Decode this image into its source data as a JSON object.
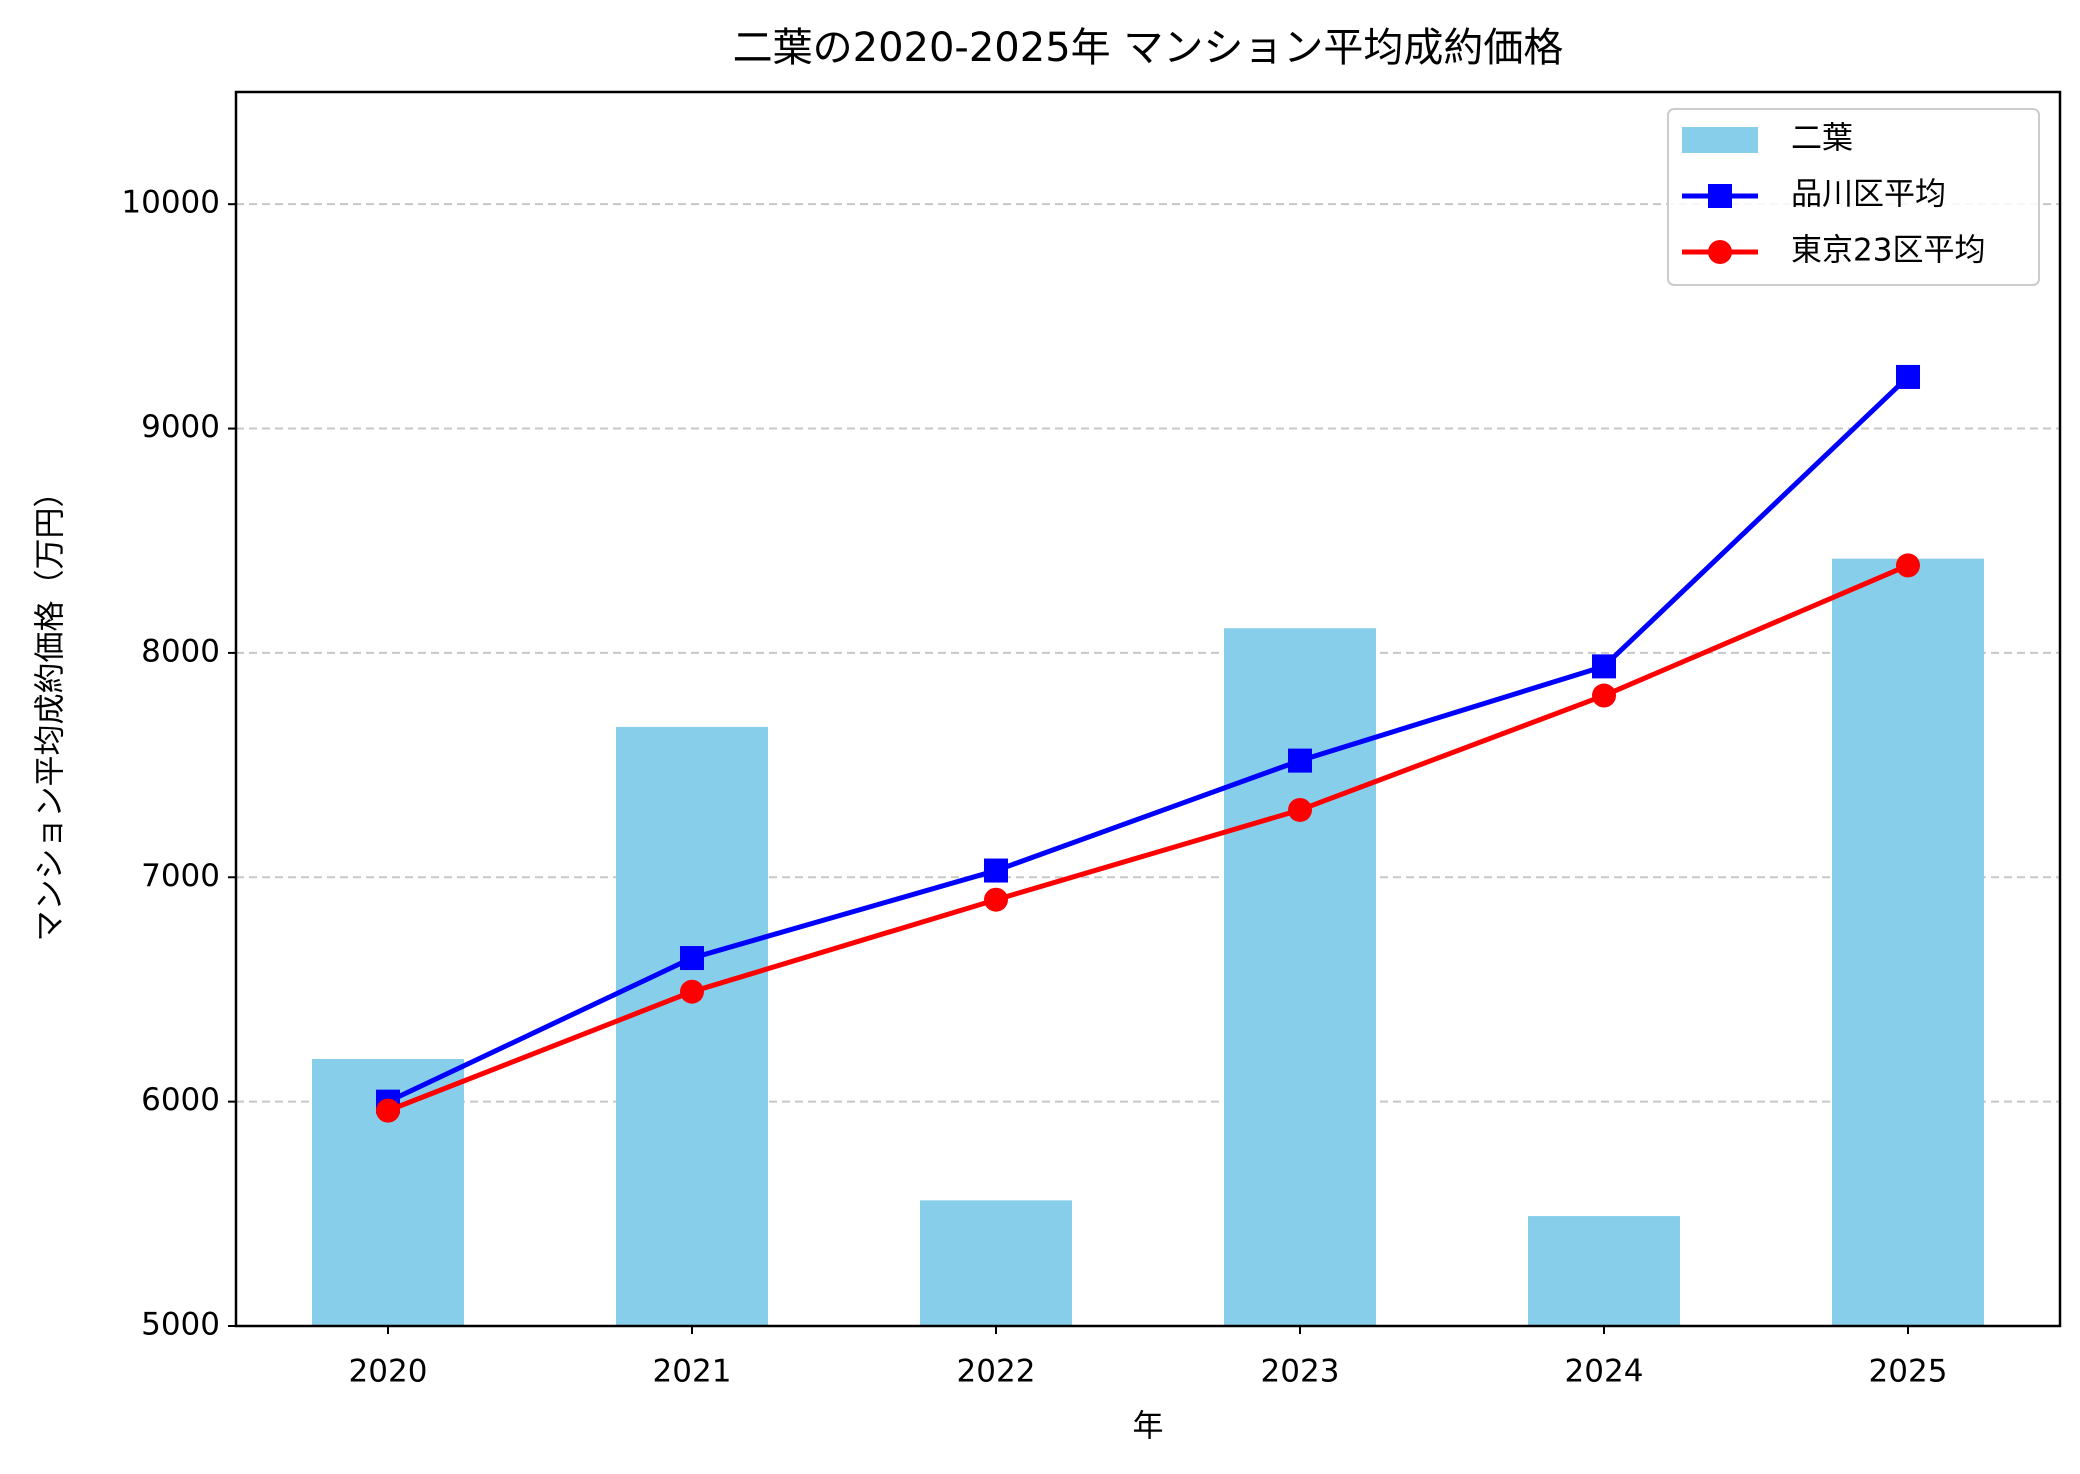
{
  "chart_data": {
    "type": "bar_line",
    "title": "二葉の2020-2025年 マンション平均成約価格",
    "x_label": "年",
    "y_label": "マンション平均成約価格（万円）",
    "categories": [
      "2020",
      "2021",
      "2022",
      "2023",
      "2024",
      "2025"
    ],
    "series": [
      {
        "name": "二葉",
        "type": "bar",
        "color": "#87ceeb",
        "values": [
          6190,
          7670,
          5560,
          8110,
          5490,
          8420
        ]
      },
      {
        "name": "品川区平均",
        "type": "line",
        "marker": "square",
        "color": "#0000ff",
        "values": [
          6000,
          6640,
          7030,
          7520,
          7940,
          9230
        ]
      },
      {
        "name": "東京23区平均",
        "type": "line",
        "marker": "circle",
        "color": "#ff0000",
        "values": [
          5960,
          6490,
          6900,
          7300,
          7810,
          8390
        ]
      }
    ],
    "ylim": [
      5000,
      10500
    ],
    "yticks": [
      5000,
      6000,
      7000,
      8000,
      9000,
      10000
    ],
    "grid": "y",
    "legend": "upper right"
  }
}
